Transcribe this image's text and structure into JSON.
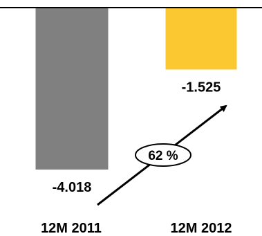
{
  "chart_data": {
    "type": "bar",
    "categories": [
      "12M 2011",
      "12M 2012"
    ],
    "values": [
      -4.018,
      -1.525
    ],
    "value_labels": [
      "-4.018",
      "-1.525"
    ],
    "ylim": [
      -4.5,
      0
    ],
    "colors": [
      "#808080",
      "#FBC831"
    ],
    "annotation": {
      "text": "62 %",
      "style": "arrow from first bar to second bar"
    },
    "grid": false,
    "legend": "none"
  }
}
